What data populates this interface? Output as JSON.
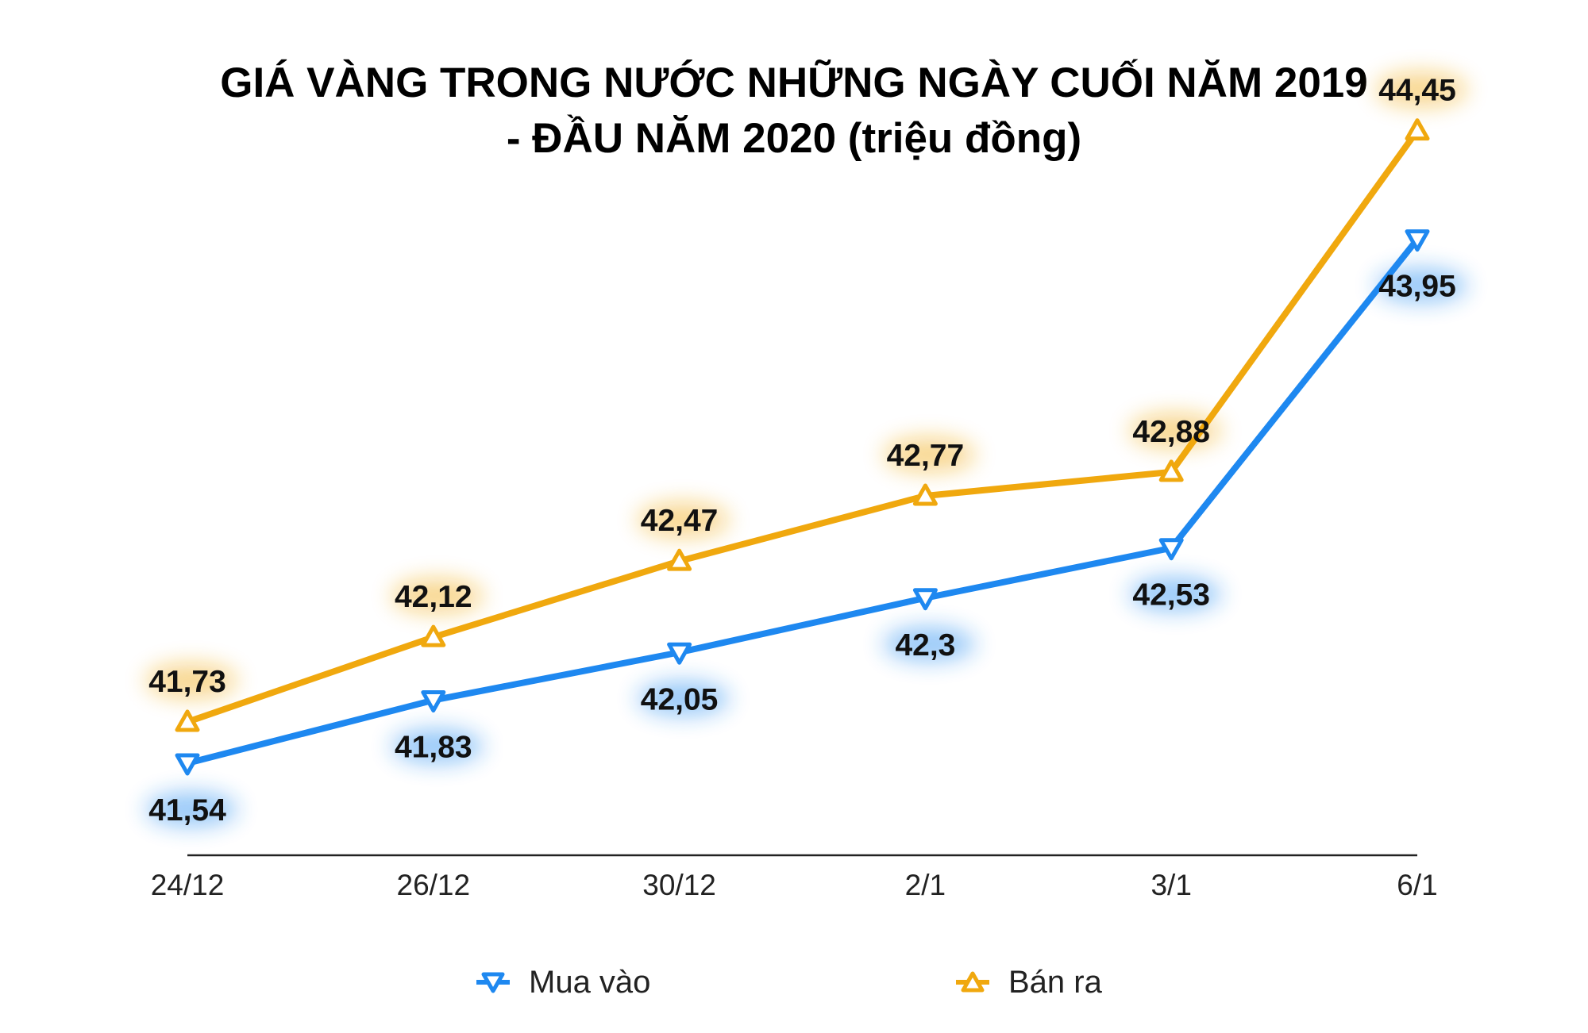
{
  "chart_data": {
    "type": "line",
    "title": "GIÁ VÀNG TRONG NƯỚC NHỮNG NGÀY CUỐI NĂM 2019",
    "subtitle": "- ĐẦU NĂM 2020 (triệu đồng)",
    "categories": [
      "24/12",
      "26/12",
      "30/12",
      "2/1",
      "3/1",
      "6/1"
    ],
    "series": [
      {
        "name": "Mua vào",
        "color": "#1e88f0",
        "marker": "triangle-down",
        "values": [
          41.54,
          41.83,
          42.05,
          42.3,
          42.53,
          43.95
        ],
        "labels": [
          "41,54",
          "41,83",
          "42,05",
          "42,3",
          "42,53",
          "43,95"
        ],
        "label_position": "below"
      },
      {
        "name": "Bán ra",
        "color": "#f0a80e",
        "marker": "triangle-up",
        "values": [
          41.73,
          42.12,
          42.47,
          42.77,
          42.88,
          44.45
        ],
        "labels": [
          "41,73",
          "42,12",
          "42,47",
          "42,77",
          "42,88",
          "44,45"
        ],
        "label_position": "above"
      }
    ],
    "y_axis_visible": false,
    "grid": false,
    "legend": "bottom-center"
  }
}
